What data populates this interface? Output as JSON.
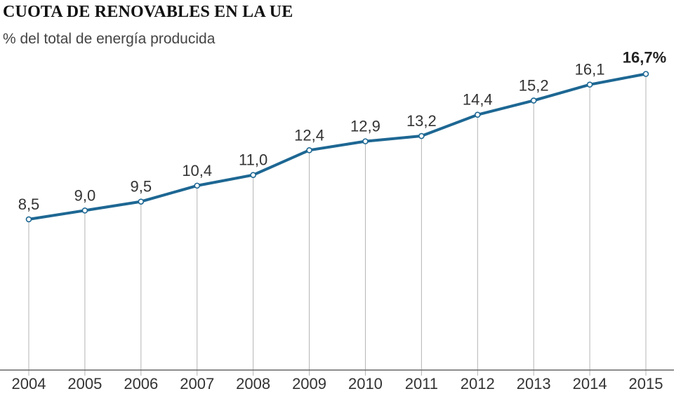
{
  "header": {
    "title": "CUOTA DE RENOVABLES EN LA UE",
    "subtitle": "% del total de energía producida"
  },
  "colors": {
    "line": "#1d6793",
    "grid": "#b4b4b4",
    "axis": "#666666",
    "point_fill": "#ffffff"
  },
  "chart_data": {
    "type": "line",
    "title": "CUOTA DE RENOVABLES EN LA UE",
    "subtitle": "% del total de energía producida",
    "xlabel": "",
    "ylabel": "",
    "categories": [
      "2004",
      "2005",
      "2006",
      "2007",
      "2008",
      "2009",
      "2010",
      "2011",
      "2012",
      "2013",
      "2014",
      "2015"
    ],
    "series": [
      {
        "values": [
          8.5,
          9.0,
          9.5,
          10.4,
          11.0,
          12.4,
          12.9,
          13.2,
          14.4,
          15.2,
          16.1,
          16.7
        ]
      }
    ],
    "data_labels": [
      "8,5",
      "9,0",
      "9,5",
      "10,4",
      "11,0",
      "12,4",
      "12,9",
      "13,2",
      "14,4",
      "15,2",
      "16,1",
      "16,7%"
    ],
    "ylim": [
      0,
      17
    ],
    "grid": "vertical",
    "legend": "none"
  }
}
